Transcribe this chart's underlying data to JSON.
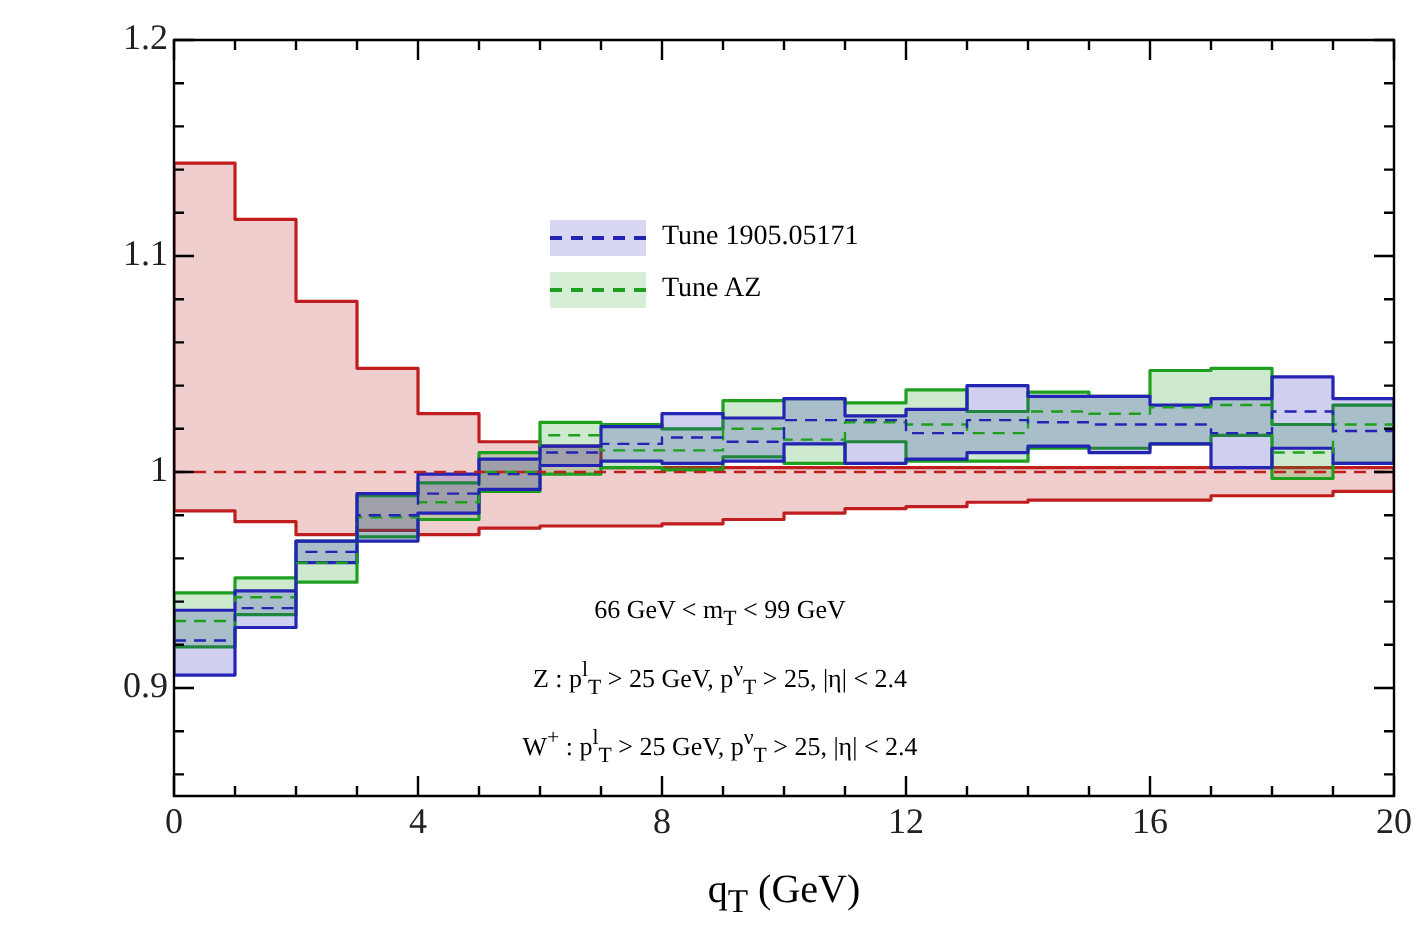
{
  "chart_data": {
    "type": "step",
    "xlabel": "q$_{T}$ (GeV)",
    "x": [
      0,
      1,
      2,
      3,
      4,
      5,
      6,
      7,
      8,
      9,
      10,
      11,
      12,
      13,
      14,
      15,
      16,
      17,
      18,
      19,
      20
    ],
    "series": [
      {
        "name": "Tune 1905.05171",
        "color": "#2323b4",
        "values": [
          0.922,
          0.937,
          0.963,
          0.98,
          0.99,
          0.999,
          1.009,
          1.013,
          1.016,
          1.014,
          1.024,
          1.024,
          1.018,
          1.024,
          1.023,
          1.022,
          1.022,
          1.018,
          1.028,
          1.019,
          1.019
        ],
        "lower": [
          0.906,
          0.928,
          0.958,
          0.968,
          0.981,
          0.992,
          1.003,
          1.005,
          1.004,
          1.005,
          1.013,
          1.004,
          1.006,
          1.009,
          1.012,
          1.009,
          1.013,
          1.002,
          1.011,
          1.004,
          1.004
        ],
        "upper": [
          0.936,
          0.945,
          0.968,
          0.99,
          0.999,
          1.006,
          1.012,
          1.021,
          1.027,
          1.025,
          1.034,
          1.026,
          1.029,
          1.04,
          1.035,
          1.035,
          1.031,
          1.034,
          1.044,
          1.034,
          1.034
        ]
      },
      {
        "name": "Tune AZ",
        "color": "#1ea01e",
        "values": [
          0.931,
          0.942,
          0.958,
          0.979,
          0.986,
          1.0,
          1.017,
          1.01,
          1.01,
          1.02,
          1.015,
          1.023,
          1.022,
          1.018,
          1.028,
          1.027,
          1.03,
          1.031,
          1.009,
          1.022,
          1.022
        ],
        "lower": [
          0.919,
          0.934,
          0.949,
          0.97,
          0.978,
          0.991,
          0.999,
          1.002,
          1.001,
          1.007,
          1.004,
          1.014,
          1.005,
          1.005,
          1.011,
          1.011,
          1.013,
          1.017,
          0.997,
          1.004,
          1.004
        ],
        "upper": [
          0.944,
          0.951,
          0.968,
          0.989,
          0.995,
          1.009,
          1.023,
          1.022,
          1.02,
          1.033,
          1.034,
          1.032,
          1.038,
          1.028,
          1.037,
          1.035,
          1.047,
          1.048,
          1.022,
          1.031,
          1.031
        ]
      },
      {
        "color": "#c01e1e",
        "values": [
          1,
          1,
          1,
          1,
          1,
          1,
          1,
          1,
          1,
          1,
          1,
          1,
          1,
          1,
          1,
          1,
          1,
          1,
          1,
          1,
          1
        ],
        "lower": [
          0.982,
          0.977,
          0.971,
          0.973,
          0.971,
          0.974,
          0.975,
          0.975,
          0.976,
          0.978,
          0.981,
          0.983,
          0.984,
          0.986,
          0.987,
          0.987,
          0.987,
          0.989,
          0.989,
          0.991,
          0.991
        ],
        "upper": [
          1.143,
          1.117,
          1.079,
          1.048,
          1.027,
          1.014,
          1.012,
          1.002,
          1.002,
          1.002,
          1.002,
          1.002,
          1.002,
          1.002,
          1.002,
          1.002,
          1.002,
          1.002,
          1.002,
          1.002,
          1.002
        ]
      }
    ],
    "xlim": [
      0,
      20
    ],
    "xticks": [
      0,
      {
        "value": 1,
        "label": null
      },
      {
        "value": 2,
        "label": null
      },
      {
        "value": 3,
        "label": null
      },
      4,
      {
        "value": 5,
        "label": null
      },
      {
        "value": 6,
        "label": null
      },
      {
        "value": 7,
        "label": null
      },
      8,
      {
        "value": 9,
        "label": null
      },
      {
        "value": 10,
        "label": null
      },
      {
        "value": 11,
        "label": null
      },
      12,
      {
        "value": 13,
        "label": null
      },
      {
        "value": 14,
        "label": null
      },
      {
        "value": 15,
        "label": null
      },
      16,
      {
        "value": 17,
        "label": null
      },
      {
        "value": 18,
        "label": null
      },
      {
        "value": 19,
        "label": null
      },
      20
    ],
    "ylim": [
      0.85,
      1.2
    ],
    "yticks": [
      {
        "value": 0.86,
        "label": null
      },
      {
        "value": 0.88,
        "label": null
      },
      0.9,
      {
        "value": 0.92,
        "label": null
      },
      {
        "value": 0.94,
        "label": null
      },
      {
        "value": 0.96,
        "label": null
      },
      {
        "value": 0.98,
        "label": null
      },
      1,
      {
        "value": 1.02,
        "label": null
      },
      {
        "value": 1.04,
        "label": null
      },
      {
        "value": 1.06,
        "label": null
      },
      {
        "value": 1.08,
        "label": null
      },
      1.1,
      {
        "value": 1.12,
        "label": null
      },
      {
        "value": 1.14,
        "label": null
      },
      {
        "value": 1.16,
        "label": null
      },
      {
        "value": 1.18,
        "label": null
      },
      1.2
    ],
    "grid": false,
    "legend": "top",
    "marker": "none",
    "line_style": "dashed",
    "annotations": [
      "66 GeV < m$_{T}$ < 99 GeV",
      "Z : p$^{l}$$_{T}$ > 25 GeV, p$^{ν}$$_{T}$ >  25, |η| < 2.4",
      "W$^{+}$ : p$^{l}$$_{T}$ > 25 GeV, p$^{ν}$$_{T}$ >  25, |η| < 2.4"
    ]
  }
}
